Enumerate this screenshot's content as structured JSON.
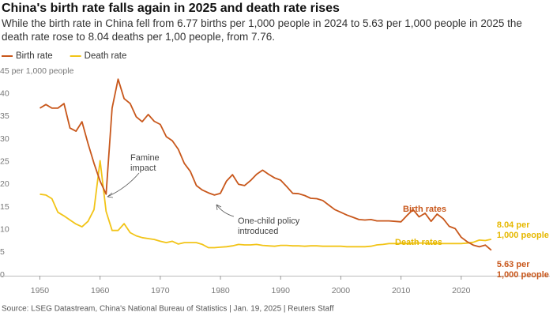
{
  "chart_data": {
    "type": "line",
    "title": "China's birth rate falls again in 2025 and death rate rises",
    "subtitle": "While the birth rate in China fell from 6.77 births per 1,000 people in 2024 to 5.63 per 1,000 people in 2025 the death rate rose to 8.04 deaths per 1,00 people, from 7.76.",
    "source": "Source: LSEG Datastream, China's National Bureau of Statistics | Jan. 19, 2025  | Reuters Staff",
    "legend": "top-left",
    "grid": false,
    "x": [
      1950,
      1951,
      1952,
      1953,
      1954,
      1955,
      1956,
      1957,
      1958,
      1959,
      1960,
      1961,
      1962,
      1963,
      1964,
      1965,
      1966,
      1967,
      1968,
      1969,
      1970,
      1971,
      1972,
      1973,
      1974,
      1975,
      1976,
      1977,
      1978,
      1979,
      1980,
      1981,
      1982,
      1983,
      1984,
      1985,
      1986,
      1987,
      1988,
      1989,
      1990,
      1991,
      1992,
      1993,
      1994,
      1995,
      1996,
      1997,
      1998,
      1999,
      2000,
      2001,
      2002,
      2003,
      2004,
      2005,
      2006,
      2007,
      2008,
      2009,
      2010,
      2011,
      2012,
      2013,
      2014,
      2015,
      2016,
      2017,
      2018,
      2019,
      2020,
      2021,
      2022,
      2023,
      2024,
      2025
    ],
    "xlim": [
      1946,
      2030
    ],
    "xticks": [
      1950,
      1960,
      1970,
      1980,
      1990,
      2000,
      2010,
      2020
    ],
    "ylim": [
      0,
      45
    ],
    "yticks": [
      0,
      5,
      10,
      15,
      20,
      25,
      30,
      35,
      40,
      {
        "value": 45,
        "label": "45 per 1,000 people"
      }
    ],
    "series": [
      {
        "name": "Birth rate",
        "color": "#c8571b",
        "values": [
          37.0,
          37.8,
          37.0,
          37.0,
          38.0,
          32.6,
          31.9,
          34.0,
          29.2,
          24.8,
          20.9,
          18.0,
          37.0,
          43.4,
          39.1,
          38.0,
          35.1,
          34.0,
          35.6,
          34.1,
          33.4,
          30.7,
          29.8,
          27.9,
          24.8,
          23.0,
          19.9,
          18.9,
          18.3,
          17.8,
          18.2,
          20.9,
          22.3,
          20.2,
          19.9,
          21.0,
          22.4,
          23.3,
          22.4,
          21.6,
          21.1,
          19.7,
          18.2,
          18.1,
          17.7,
          17.1,
          17.0,
          16.6,
          15.6,
          14.6,
          14.0,
          13.4,
          12.9,
          12.4,
          12.3,
          12.4,
          12.1,
          12.1,
          12.1,
          12.0,
          11.9,
          13.3,
          14.6,
          13.0,
          13.8,
          12.0,
          13.6,
          12.6,
          10.9,
          10.4,
          8.5,
          7.5,
          6.77,
          6.39,
          6.77,
          5.63
        ]
      },
      {
        "name": "Death rate",
        "color": "#f2c417",
        "values": [
          18.0,
          17.8,
          17.0,
          14.0,
          13.2,
          12.3,
          11.4,
          10.8,
          12.0,
          14.6,
          25.4,
          14.2,
          10.0,
          10.0,
          11.5,
          9.5,
          8.8,
          8.4,
          8.2,
          8.0,
          7.6,
          7.3,
          7.6,
          7.0,
          7.3,
          7.3,
          7.3,
          6.9,
          6.2,
          6.2,
          6.3,
          6.4,
          6.6,
          6.9,
          6.8,
          6.8,
          6.9,
          6.7,
          6.6,
          6.5,
          6.7,
          6.7,
          6.6,
          6.6,
          6.5,
          6.6,
          6.6,
          6.5,
          6.5,
          6.5,
          6.5,
          6.4,
          6.4,
          6.4,
          6.4,
          6.5,
          6.8,
          6.9,
          7.1,
          7.1,
          7.1,
          7.1,
          7.2,
          7.2,
          7.2,
          7.1,
          7.1,
          7.1,
          7.1,
          7.1,
          7.1,
          7.2,
          7.37,
          7.87,
          7.76,
          8.04
        ]
      }
    ],
    "annotations": [
      {
        "lines": [
          "Famine",
          "impact"
        ],
        "color": "#444444"
      },
      {
        "lines": [
          "One-child policy",
          "introduced"
        ],
        "color": "#444444"
      },
      {
        "lines": [
          "Birth rates"
        ],
        "color": "#c8571b"
      },
      {
        "lines": [
          "Death rates"
        ],
        "color": "#e6b800"
      },
      {
        "lines": [
          "8.04 per",
          "1,000 people"
        ],
        "color": "#e6b800"
      },
      {
        "lines": [
          "5.63 per",
          "1,000 people"
        ],
        "color": "#c8571b"
      }
    ]
  }
}
